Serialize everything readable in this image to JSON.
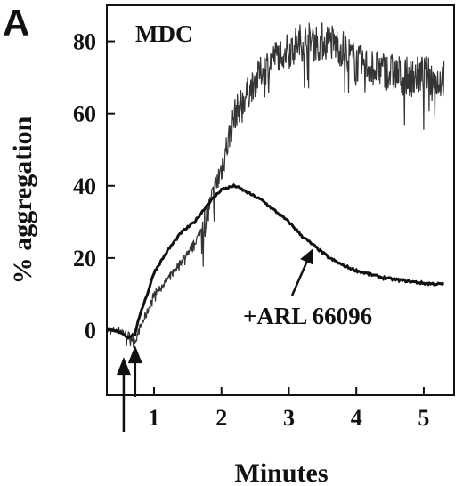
{
  "figure": {
    "panel_label": "A",
    "colors": {
      "ink": "#111111",
      "background": "#ffffff"
    }
  },
  "chart_data": {
    "type": "line",
    "title": "MDC",
    "xlabel": "Minutes",
    "ylabel": "% aggregation",
    "xlim": [
      0.3,
      5.45
    ],
    "ylim": [
      -18,
      90
    ],
    "xticks": [
      1,
      2,
      3,
      4,
      5
    ],
    "yticks": [
      0,
      20,
      40,
      60,
      80
    ],
    "grid": false,
    "legend": "none",
    "annotation": {
      "text": "+ARL 66096",
      "points_to_series": 1,
      "arrow_target": [
        3.35,
        22.5
      ]
    },
    "agonist_arrows_x": [
      0.55,
      0.72
    ],
    "series": [
      {
        "style": "noisy",
        "x": [
          0.3,
          0.5,
          0.62,
          0.72,
          0.8,
          0.9,
          1.0,
          1.2,
          1.4,
          1.6,
          1.8,
          2.0,
          2.2,
          2.4,
          2.6,
          2.8,
          3.0,
          3.2,
          3.4,
          3.6,
          3.8,
          4.0,
          4.2,
          4.4,
          4.6,
          4.8,
          5.0,
          5.2,
          5.3
        ],
        "y": [
          0,
          0,
          -1.5,
          -3,
          1,
          5,
          10,
          14,
          19,
          24,
          32,
          45,
          60,
          66,
          72,
          76,
          78,
          80,
          80,
          80,
          78,
          74,
          73,
          72,
          71,
          70,
          71,
          69,
          70
        ]
      },
      {
        "style": "smooth",
        "x": [
          0.3,
          0.5,
          0.62,
          0.72,
          0.8,
          0.9,
          1.0,
          1.2,
          1.4,
          1.6,
          1.8,
          2.0,
          2.2,
          2.4,
          2.6,
          2.8,
          3.0,
          3.2,
          3.4,
          3.6,
          3.8,
          4.0,
          4.2,
          4.4,
          4.6,
          4.8,
          5.0,
          5.2,
          5.3
        ],
        "y": [
          0,
          -0.5,
          -2,
          -1,
          5,
          10,
          16,
          22,
          27,
          30,
          35,
          39,
          40,
          38,
          36,
          33,
          30,
          26,
          23,
          20,
          18,
          16.5,
          15.5,
          14.5,
          14,
          13.5,
          13,
          12.8,
          12.8
        ]
      }
    ]
  }
}
